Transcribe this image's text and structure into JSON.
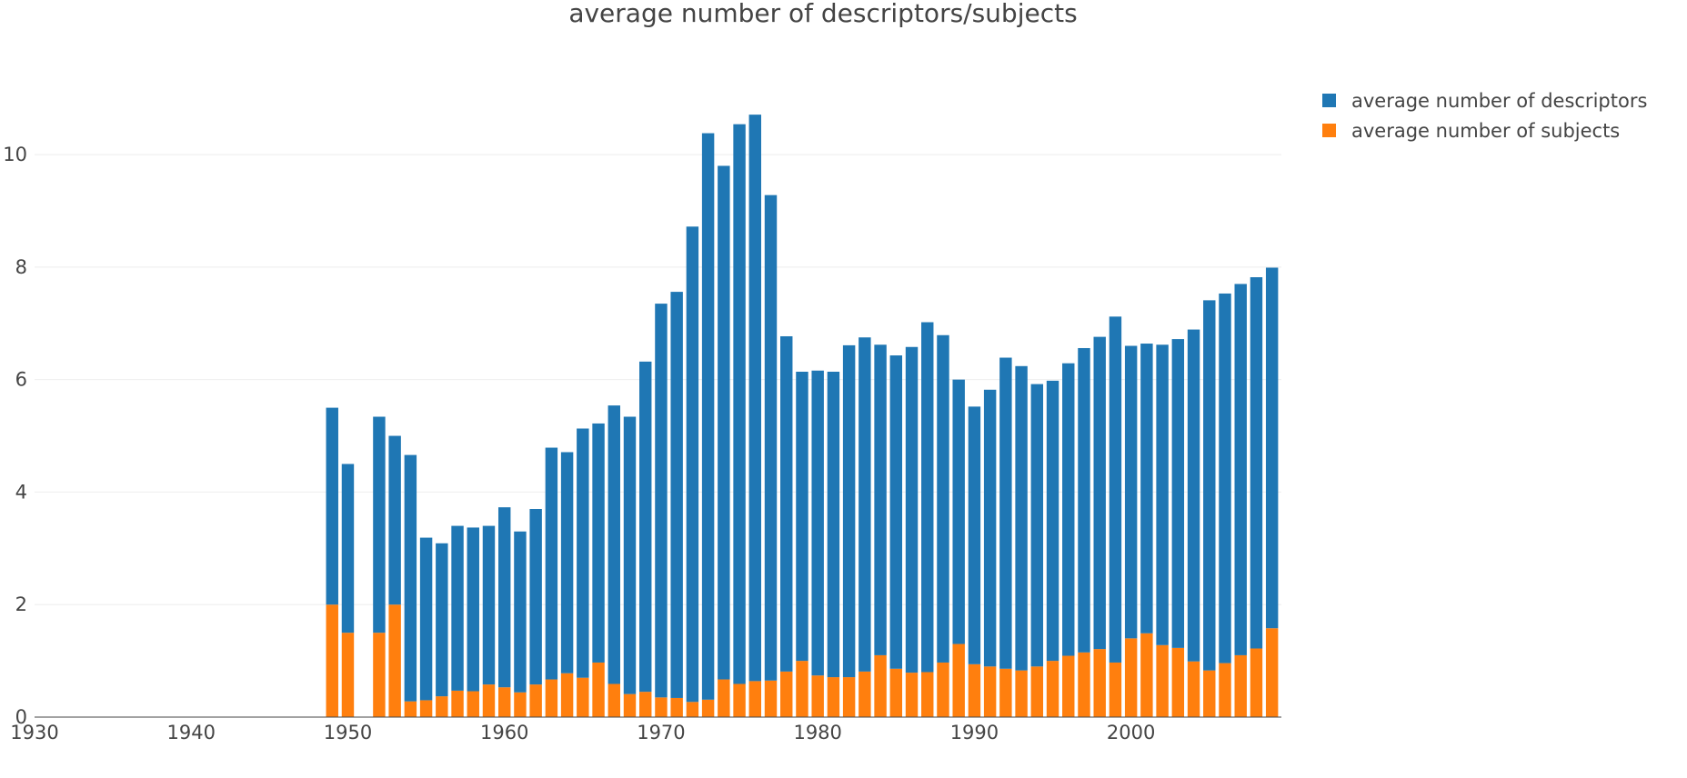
{
  "chart_data": {
    "type": "bar",
    "barmode": "stack",
    "title": "average number of descriptors/subjects",
    "xlabel": "",
    "ylabel": "",
    "xlim": [
      1930,
      2009.6
    ],
    "ylim": [
      0,
      11.1
    ],
    "xticks": [
      1930,
      1940,
      1950,
      1960,
      1970,
      1980,
      1990,
      2000
    ],
    "yticks": [
      0,
      2,
      4,
      6,
      8,
      10
    ],
    "grid": true,
    "legend_position": "top-right",
    "x": [
      1949,
      1950,
      1952,
      1953,
      1954,
      1955,
      1956,
      1957,
      1958,
      1959,
      1960,
      1961,
      1962,
      1963,
      1964,
      1965,
      1966,
      1967,
      1968,
      1969,
      1970,
      1971,
      1972,
      1973,
      1974,
      1975,
      1976,
      1977,
      1978,
      1979,
      1980,
      1981,
      1982,
      1983,
      1984,
      1985,
      1986,
      1987,
      1988,
      1989,
      1990,
      1991,
      1992,
      1993,
      1994,
      1995,
      1996,
      1997,
      1998,
      1999,
      2000,
      2001,
      2002,
      2003,
      2004,
      2005,
      2006,
      2007,
      2008,
      2009
    ],
    "series": [
      {
        "name": "average number of subjects",
        "color": "#ff7f0e",
        "values": [
          2.0,
          1.5,
          1.5,
          2.0,
          0.28,
          0.3,
          0.37,
          0.47,
          0.46,
          0.58,
          0.53,
          0.44,
          0.58,
          0.67,
          0.78,
          0.7,
          0.97,
          0.59,
          0.41,
          0.45,
          0.35,
          0.34,
          0.27,
          0.31,
          0.67,
          0.59,
          0.64,
          0.65,
          0.81,
          1.0,
          0.74,
          0.71,
          0.71,
          0.81,
          1.1,
          0.86,
          0.79,
          0.8,
          0.97,
          1.3,
          0.94,
          0.9,
          0.86,
          0.83,
          0.9,
          1.0,
          1.09,
          1.15,
          1.21,
          0.97,
          1.4,
          1.49,
          1.28,
          1.23,
          0.99,
          0.83,
          0.96,
          1.1,
          1.22,
          1.58
        ]
      },
      {
        "name": "average number of descriptors",
        "color": "#1f77b4",
        "values": [
          3.5,
          3.0,
          3.84,
          3.0,
          4.38,
          2.89,
          2.72,
          2.93,
          2.91,
          2.82,
          3.2,
          2.86,
          3.12,
          4.12,
          3.93,
          4.43,
          4.25,
          4.95,
          4.93,
          5.87,
          7.0,
          7.22,
          8.45,
          10.07,
          9.13,
          9.95,
          10.07,
          8.63,
          5.96,
          5.14,
          5.42,
          5.43,
          5.9,
          5.94,
          5.52,
          5.57,
          5.79,
          6.22,
          5.82,
          4.7,
          4.58,
          4.92,
          5.53,
          5.41,
          5.02,
          4.98,
          5.2,
          5.41,
          5.55,
          6.15,
          5.2,
          5.15,
          5.34,
          5.49,
          5.9,
          6.58,
          6.57,
          6.6,
          6.6,
          6.41
        ]
      }
    ]
  }
}
